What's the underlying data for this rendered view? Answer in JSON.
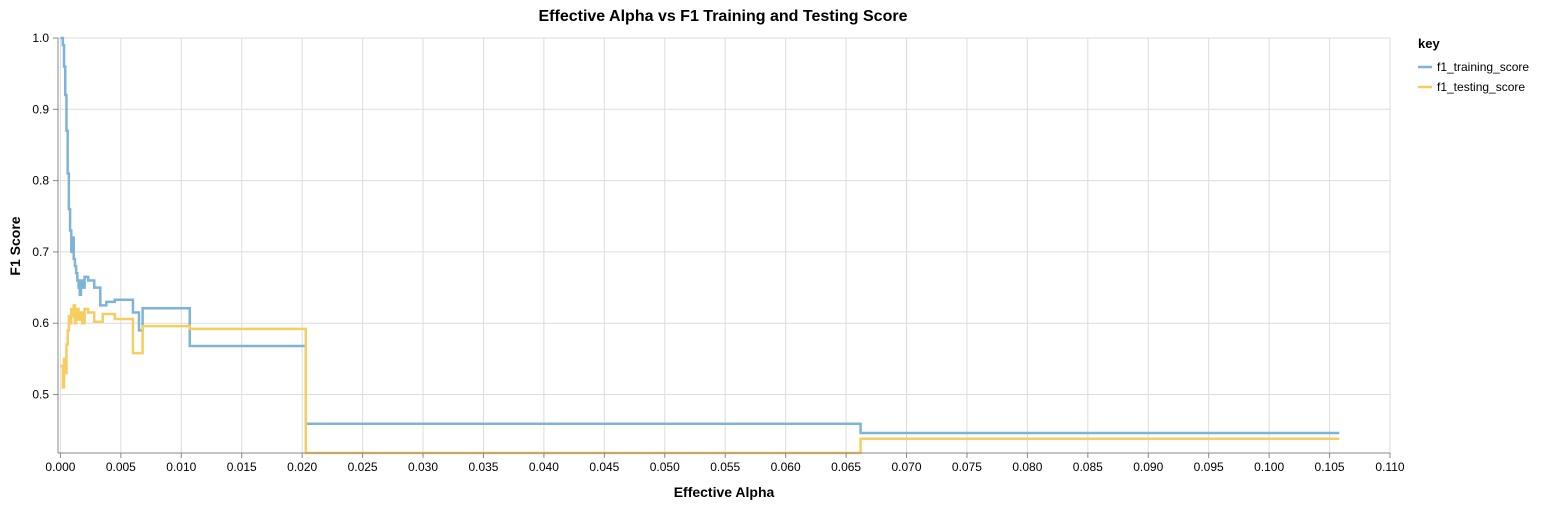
{
  "chart_data": {
    "type": "line",
    "interpolate": "step-after",
    "title": "Effective Alpha vs F1 Training and Testing Score",
    "xlabel": "Effective Alpha",
    "ylabel": "F1 Score",
    "xlim": [
      -0.0002,
      0.11
    ],
    "ylim": [
      0.418,
      1.0
    ],
    "xticks": [
      0.0,
      0.005,
      0.01,
      0.015,
      0.02,
      0.025,
      0.03,
      0.035,
      0.04,
      0.045,
      0.05,
      0.055,
      0.06,
      0.065,
      0.07,
      0.075,
      0.08,
      0.085,
      0.09,
      0.095,
      0.1,
      0.105,
      0.11
    ],
    "xtick_labels": [
      "0.000",
      "0.005",
      "0.010",
      "0.015",
      "0.020",
      "0.025",
      "0.030",
      "0.035",
      "0.040",
      "0.045",
      "0.050",
      "0.055",
      "0.060",
      "0.065",
      "0.070",
      "0.075",
      "0.080",
      "0.085",
      "0.090",
      "0.095",
      "0.100",
      "0.105",
      "0.110"
    ],
    "yticks": [
      0.5,
      0.6,
      0.7,
      0.8,
      0.9,
      1.0
    ],
    "ytick_labels": [
      "0.5",
      "0.6",
      "0.7",
      "0.8",
      "0.9",
      "1.0"
    ],
    "grid": true,
    "legend": {
      "title": "key",
      "position": "top-right"
    },
    "series": [
      {
        "name": "f1_training_score",
        "color": "#7eb4d8",
        "x": [
          0.0,
          0.0002,
          0.0003,
          0.0004,
          0.0005,
          0.0006,
          0.0007,
          0.0008,
          0.0009,
          0.001,
          0.0011,
          0.0012,
          0.0013,
          0.0014,
          0.0015,
          0.0016,
          0.0017,
          0.0018,
          0.002,
          0.0023,
          0.0028,
          0.0033,
          0.0038,
          0.0045,
          0.006,
          0.0065,
          0.0068,
          0.0107,
          0.0203,
          0.0662,
          0.1058
        ],
        "y": [
          1.0,
          0.99,
          0.96,
          0.92,
          0.87,
          0.81,
          0.76,
          0.73,
          0.7,
          0.72,
          0.69,
          0.68,
          0.67,
          0.66,
          0.65,
          0.64,
          0.66,
          0.65,
          0.665,
          0.66,
          0.65,
          0.625,
          0.63,
          0.633,
          0.615,
          0.59,
          0.621,
          0.568,
          0.459,
          0.446,
          0.446
        ]
      },
      {
        "name": "f1_testing_score",
        "color": "#f6cd60",
        "x": [
          0.0,
          0.0002,
          0.0003,
          0.0004,
          0.0005,
          0.0006,
          0.0007,
          0.0008,
          0.0009,
          0.001,
          0.0011,
          0.0012,
          0.0013,
          0.0014,
          0.0015,
          0.0016,
          0.0018,
          0.002,
          0.0023,
          0.0028,
          0.0035,
          0.0045,
          0.006,
          0.0068,
          0.0107,
          0.0203,
          0.0662,
          0.1058
        ],
        "y": [
          0.54,
          0.51,
          0.55,
          0.53,
          0.57,
          0.59,
          0.61,
          0.6,
          0.62,
          0.61,
          0.625,
          0.6,
          0.61,
          0.62,
          0.605,
          0.615,
          0.6,
          0.62,
          0.615,
          0.602,
          0.613,
          0.606,
          0.558,
          0.596,
          0.592,
          0.418,
          0.438,
          0.438
        ]
      }
    ]
  }
}
